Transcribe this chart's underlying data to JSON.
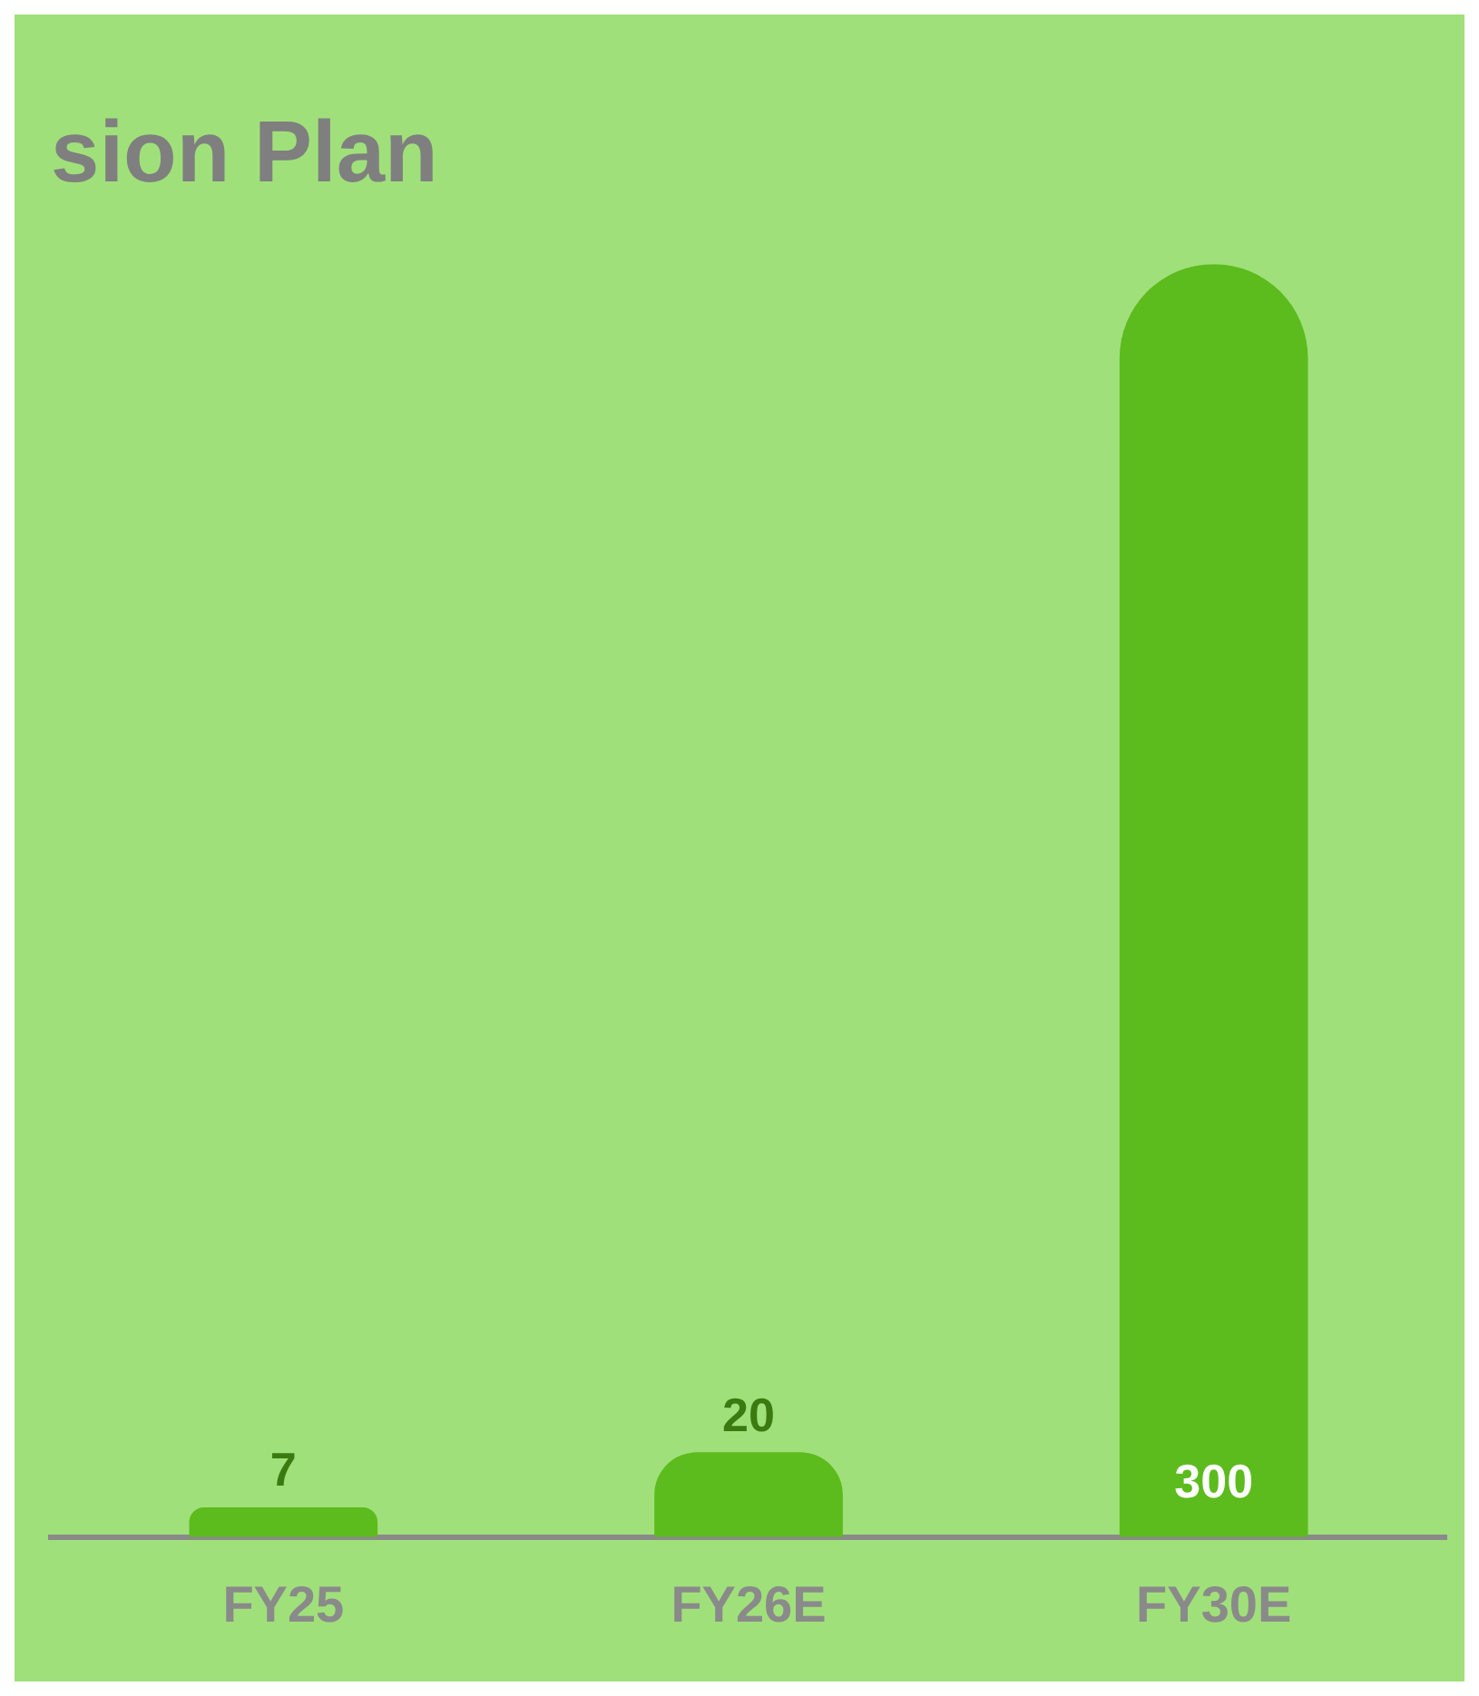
{
  "chart_data": {
    "type": "bar",
    "title": "sion Plan",
    "categories": [
      "FY25",
      "FY26E",
      "FY30E"
    ],
    "values": [
      7,
      20,
      300
    ],
    "color": "#5cbb1d",
    "data_labels": true
  }
}
